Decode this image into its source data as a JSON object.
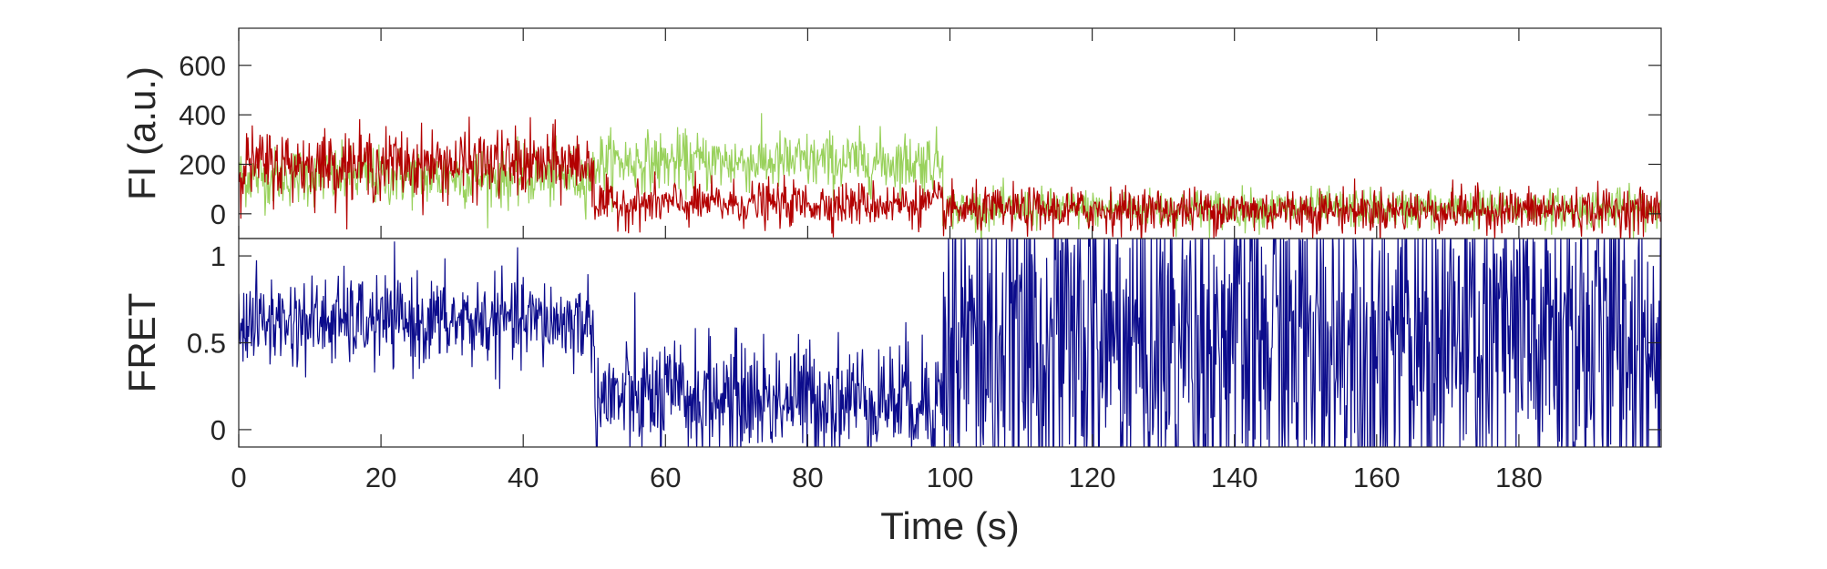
{
  "chart_data": [
    {
      "type": "line",
      "ylabel": "FI (a.u.)",
      "xlim": [
        0,
        200
      ],
      "ylim": [
        -100,
        750
      ],
      "yticks": [
        0,
        200,
        400,
        600
      ],
      "grid": false,
      "series": [
        {
          "color": "#99d15c",
          "segments": [
            {
              "t": [
                0,
                50
              ],
              "mean": 150,
              "noise": 60
            },
            {
              "t": [
                50,
                99
              ],
              "mean": 210,
              "noise": 60
            },
            {
              "t": [
                99,
                200
              ],
              "mean": 20,
              "noise": 40
            }
          ]
        },
        {
          "color": "#b30000",
          "segments": [
            {
              "t": [
                0,
                50
              ],
              "mean": 200,
              "noise": 70
            },
            {
              "t": [
                50,
                99
              ],
              "mean": 40,
              "noise": 45
            },
            {
              "t": [
                99,
                200
              ],
              "mean": 15,
              "noise": 45
            }
          ]
        }
      ]
    },
    {
      "type": "line",
      "xlabel": "Time (s)",
      "ylabel": "FRET",
      "xlim": [
        0,
        200
      ],
      "ylim": [
        -0.1,
        1.1
      ],
      "xticks": [
        0,
        20,
        40,
        60,
        80,
        100,
        120,
        140,
        160,
        180
      ],
      "yticks": [
        0,
        0.5,
        1
      ],
      "ytick_labels": [
        "0",
        "0.5",
        "1"
      ],
      "grid": false,
      "series": [
        {
          "color": "#0c0c8c",
          "segments": [
            {
              "t": [
                0,
                50
              ],
              "mean": 0.62,
              "noise": 0.13
            },
            {
              "t": [
                50,
                99
              ],
              "mean": 0.18,
              "noise": 0.17
            },
            {
              "t": [
                99,
                200
              ],
              "mean": 0.5,
              "noise": 0.55
            }
          ]
        }
      ]
    }
  ]
}
